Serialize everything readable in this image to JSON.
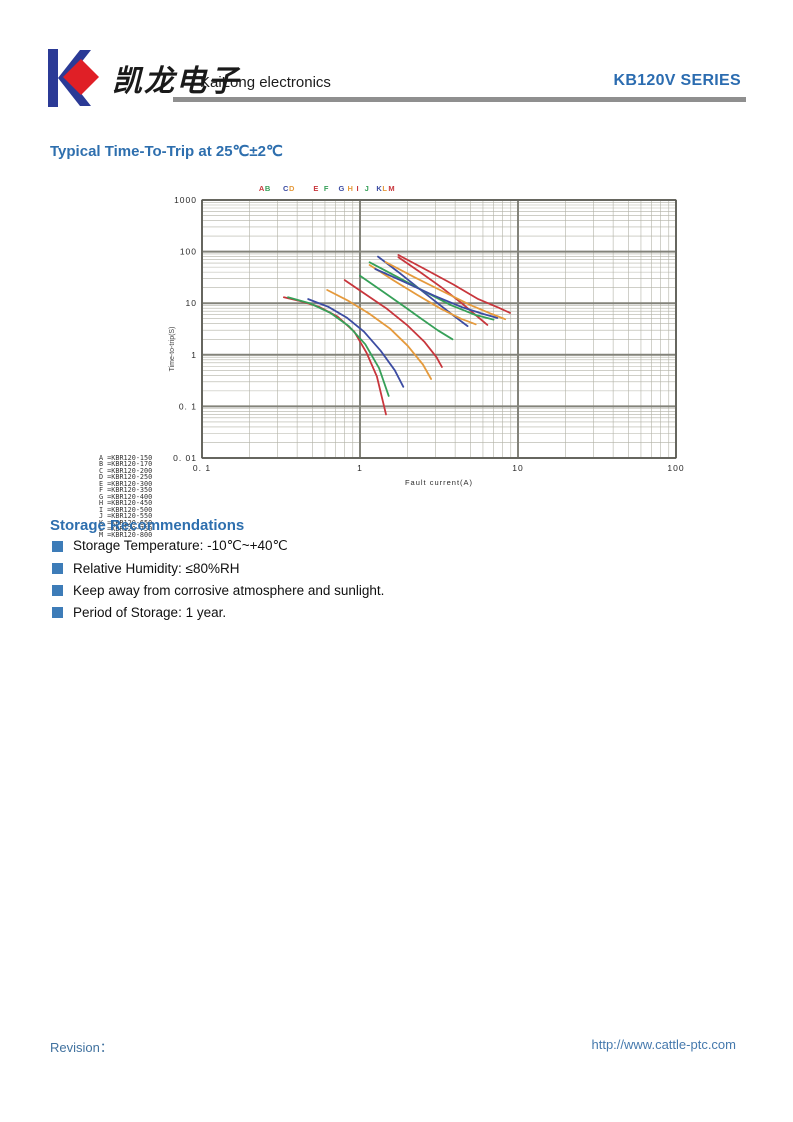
{
  "header": {
    "brand_cn": "凯龙电子",
    "brand_en": "KaiLong electronics",
    "series": "KB120V SERIES"
  },
  "trip_section_title": "Typical Time-To-Trip at 25℃±2℃",
  "chart_data": {
    "type": "line",
    "title": "Typical Time-To-Trip at 25℃±2℃",
    "xlabel": "Fault current(A)",
    "ylabel": "Time-to-trip(S)",
    "xscale": "log",
    "yscale": "log",
    "xlim": [
      0.1,
      100
    ],
    "ylim": [
      0.01,
      1000
    ],
    "grid": true,
    "x_ticks": [
      {
        "v": 0.1,
        "label": "0. 1"
      },
      {
        "v": 1,
        "label": "1"
      },
      {
        "v": 10,
        "label": "10"
      },
      {
        "v": 100,
        "label": "100"
      }
    ],
    "y_ticks": [
      {
        "v": 1000,
        "label": "1000"
      },
      {
        "v": 100,
        "label": "100"
      },
      {
        "v": 10,
        "label": "10"
      },
      {
        "v": 1,
        "label": "1"
      },
      {
        "v": 0.1,
        "label": "0. 1"
      },
      {
        "v": 0.01,
        "label": "0. 01"
      }
    ],
    "palette": {
      "red": "#c8363c",
      "green": "#36a058",
      "blue": "#3c4ca2",
      "orange": "#e59a3c"
    },
    "top_legend": [
      {
        "x": 0.12,
        "letters": [
          {
            "ch": "A",
            "color": "red"
          },
          {
            "ch": "B",
            "color": "green"
          }
        ]
      },
      {
        "x": 0.171,
        "letters": [
          {
            "ch": "C",
            "color": "blue"
          },
          {
            "ch": "D",
            "color": "orange"
          }
        ]
      },
      {
        "x": 0.235,
        "letters": [
          {
            "ch": "E",
            "color": "red"
          }
        ]
      },
      {
        "x": 0.257,
        "letters": [
          {
            "ch": "F",
            "color": "green"
          }
        ]
      },
      {
        "x": 0.288,
        "letters": [
          {
            "ch": "G",
            "color": "blue"
          }
        ]
      },
      {
        "x": 0.307,
        "letters": [
          {
            "ch": "H",
            "color": "orange"
          }
        ]
      },
      {
        "x": 0.326,
        "letters": [
          {
            "ch": "I",
            "color": "red"
          }
        ]
      },
      {
        "x": 0.343,
        "letters": [
          {
            "ch": "J",
            "color": "green"
          }
        ]
      },
      {
        "x": 0.368,
        "letters": [
          {
            "ch": "K",
            "color": "blue"
          },
          {
            "ch": "L",
            "color": "orange"
          },
          {
            "ch": "M",
            "color": "red"
          }
        ]
      }
    ],
    "series": [
      {
        "name": "A",
        "model": "KBR120-150",
        "color": "red",
        "points": [
          [
            0.33,
            13
          ],
          [
            0.42,
            11
          ],
          [
            0.55,
            8.5
          ],
          [
            0.72,
            5.5
          ],
          [
            0.92,
            2.8
          ],
          [
            1.1,
            1.1
          ],
          [
            1.28,
            0.38
          ],
          [
            1.4,
            0.12
          ],
          [
            1.46,
            0.07
          ]
        ]
      },
      {
        "name": "B",
        "model": "KBR120-170",
        "color": "green",
        "points": [
          [
            0.35,
            13
          ],
          [
            0.48,
            10
          ],
          [
            0.65,
            6.5
          ],
          [
            0.85,
            3.6
          ],
          [
            1.08,
            1.6
          ],
          [
            1.32,
            0.55
          ],
          [
            1.52,
            0.16
          ]
        ]
      },
      {
        "name": "C",
        "model": "KBR120-200",
        "color": "blue",
        "points": [
          [
            0.47,
            12
          ],
          [
            0.63,
            8.5
          ],
          [
            0.83,
            5.2
          ],
          [
            1.06,
            2.8
          ],
          [
            1.35,
            1.2
          ],
          [
            1.66,
            0.5
          ],
          [
            1.88,
            0.24
          ]
        ]
      },
      {
        "name": "D",
        "model": "KBR120-250",
        "color": "orange",
        "points": [
          [
            0.62,
            18
          ],
          [
            0.85,
            11
          ],
          [
            1.15,
            6.2
          ],
          [
            1.55,
            3.2
          ],
          [
            2.0,
            1.5
          ],
          [
            2.5,
            0.65
          ],
          [
            2.82,
            0.34
          ]
        ]
      },
      {
        "name": "E",
        "model": "KBR120-300",
        "color": "red",
        "points": [
          [
            0.8,
            28
          ],
          [
            1.08,
            15
          ],
          [
            1.48,
            7.8
          ],
          [
            1.98,
            3.8
          ],
          [
            2.55,
            1.8
          ],
          [
            3.05,
            0.9
          ],
          [
            3.3,
            0.58
          ]
        ]
      },
      {
        "name": "F",
        "model": "KBR120-350",
        "color": "green",
        "points": [
          [
            1.0,
            34
          ],
          [
            1.35,
            18
          ],
          [
            1.8,
            9.8
          ],
          [
            2.4,
            5.2
          ],
          [
            3.1,
            3.0
          ],
          [
            3.85,
            2.0
          ]
        ]
      },
      {
        "name": "G",
        "model": "KBR120-400",
        "color": "blue",
        "points": [
          [
            1.3,
            80
          ],
          [
            1.75,
            40
          ],
          [
            2.35,
            19.5
          ],
          [
            3.1,
            10
          ],
          [
            3.95,
            5.6
          ],
          [
            4.8,
            3.6
          ]
        ]
      },
      {
        "name": "H",
        "model": "KBR120-450",
        "color": "orange",
        "points": [
          [
            1.15,
            55
          ],
          [
            1.62,
            28
          ],
          [
            2.3,
            14.5
          ],
          [
            3.25,
            7.8
          ],
          [
            4.35,
            5.0
          ],
          [
            5.4,
            3.9
          ]
        ]
      },
      {
        "name": "I",
        "model": "KBR120-500",
        "color": "red",
        "points": [
          [
            1.75,
            78
          ],
          [
            2.4,
            40
          ],
          [
            3.3,
            20
          ],
          [
            4.4,
            10
          ],
          [
            5.5,
            5.6
          ],
          [
            6.4,
            3.8
          ]
        ]
      },
      {
        "name": "J",
        "model": "KBR120-550",
        "color": "green",
        "points": [
          [
            1.15,
            62
          ],
          [
            1.7,
            33
          ],
          [
            2.55,
            17
          ],
          [
            3.75,
            9.2
          ],
          [
            5.3,
            6.0
          ],
          [
            7.0,
            4.8
          ]
        ]
      },
      {
        "name": "K",
        "model": "KBR120-650",
        "color": "blue",
        "points": [
          [
            1.25,
            46
          ],
          [
            1.9,
            26
          ],
          [
            2.95,
            14
          ],
          [
            4.4,
            8.4
          ],
          [
            6.0,
            6.2
          ],
          [
            7.4,
            5.2
          ]
        ]
      },
      {
        "name": "L",
        "model": "KBR120-750",
        "color": "orange",
        "points": [
          [
            1.45,
            63
          ],
          [
            2.2,
            32
          ],
          [
            3.4,
            16.5
          ],
          [
            5.0,
            9.2
          ],
          [
            6.8,
            6.2
          ],
          [
            8.3,
            4.9
          ]
        ]
      },
      {
        "name": "M",
        "model": "KBR120-800",
        "color": "red",
        "points": [
          [
            1.75,
            86
          ],
          [
            2.6,
            45
          ],
          [
            3.9,
            23
          ],
          [
            5.6,
            12
          ],
          [
            7.5,
            8.2
          ],
          [
            8.9,
            6.5
          ]
        ]
      }
    ]
  },
  "storage": {
    "title": "Storage Recommendations",
    "items": [
      "Storage Temperature: -10℃~+40℃",
      "Relative Humidity: ≤80%RH",
      "Keep away from corrosive atmosphere and sunlight.",
      "Period of Storage: 1 year."
    ]
  },
  "footer": {
    "revision_label": "Revision：",
    "url": "http://www.cattle-ptc.com"
  }
}
